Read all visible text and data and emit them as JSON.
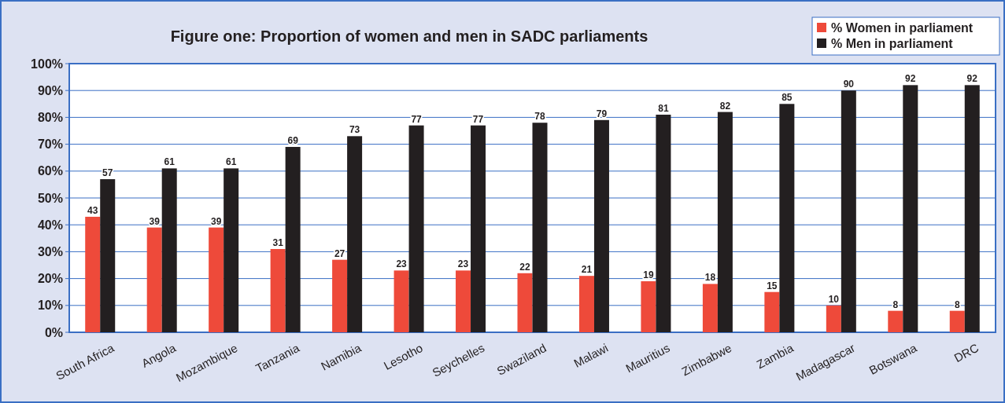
{
  "chart_data": {
    "type": "bar",
    "title": "Figure one: Proportion of women and men in SADC parliaments",
    "categories": [
      "South Africa",
      "Angola",
      "Mozambique",
      "Tanzania",
      "Namibia",
      "Lesotho",
      "Seychelles",
      "Swaziland",
      "Malawi",
      "Mauritius",
      "Zimbabwe",
      "Zambia",
      "Madagascar",
      "Botswana",
      "DRC"
    ],
    "series": [
      {
        "name": "% Women in parliament",
        "color": "#ee4a3a",
        "values": [
          43,
          39,
          39,
          31,
          27,
          23,
          23,
          22,
          21,
          19,
          18,
          15,
          10,
          8,
          8
        ]
      },
      {
        "name": "% Men in parliament",
        "color": "#231f20",
        "values": [
          57,
          61,
          61,
          69,
          73,
          77,
          77,
          78,
          79,
          81,
          82,
          85,
          90,
          92,
          92
        ]
      }
    ],
    "ylim": [
      0,
      100
    ],
    "yticks": [
      {
        "value": 0,
        "label": "0%"
      },
      {
        "value": 10,
        "label": "10%"
      },
      {
        "value": 20,
        "label": "20%"
      },
      {
        "value": 30,
        "label": "30%"
      },
      {
        "value": 40,
        "label": "40%"
      },
      {
        "value": 50,
        "label": "50%"
      },
      {
        "value": 60,
        "label": "60%"
      },
      {
        "value": 70,
        "label": "70%"
      },
      {
        "value": 80,
        "label": "80%"
      },
      {
        "value": 90,
        "label": "90%"
      },
      {
        "value": 100,
        "label": "100%"
      }
    ],
    "grid": "y",
    "legend": "top right",
    "data_labels": true
  }
}
